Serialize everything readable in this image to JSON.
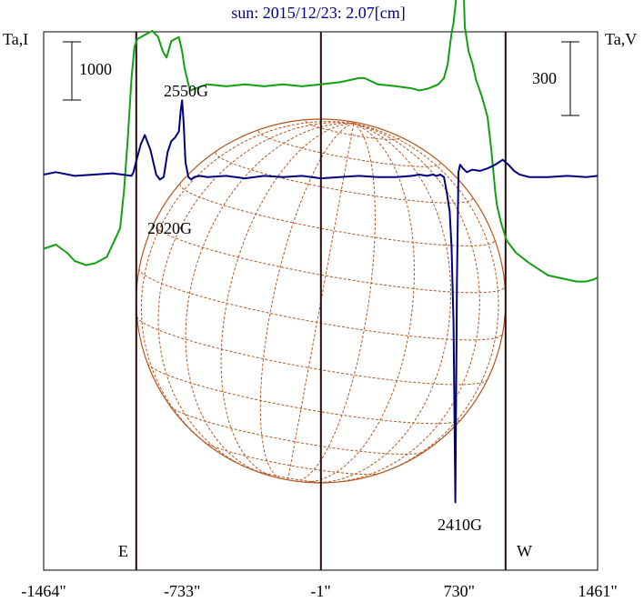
{
  "chart_data": {
    "type": "line",
    "title": "sun: 2015/12/23: 2.07[cm]",
    "left_axis_label": "Ta,I",
    "right_axis_label": "Ta,V",
    "left_scale_bar": "1000",
    "right_scale_bar": "300",
    "x_ticks": [
      "-1464\"",
      "-733\"",
      "-1\"",
      "730\"",
      "1461\""
    ],
    "x_tick_values": [
      -1464,
      -733,
      -1,
      730,
      1461
    ],
    "xlim": [
      -1464,
      1461
    ],
    "limb_labels": {
      "east": "E",
      "west": "W"
    },
    "solar_radius_arcsec": 975,
    "annotations": [
      {
        "text": "2550G",
        "x": -733,
        "series": "Ta,V"
      },
      {
        "text": "2020G",
        "x": -733,
        "series": "Ta,I"
      },
      {
        "text": "2410G",
        "x": 730,
        "series": "Ta,V"
      }
    ],
    "colors": {
      "intensity": "#129f12",
      "polarization": "#000080",
      "grid": "#b5561f",
      "title": "#00008b"
    },
    "series": [
      {
        "key": "intensity",
        "x": [
          -1464,
          -1400,
          -1340,
          -1300,
          -1240,
          -1190,
          -1130,
          -1060,
          -1040,
          -1020,
          -1000,
          -985,
          -970,
          -950,
          -930,
          -890,
          -860,
          -835,
          -815,
          -790,
          -770,
          -750,
          -733,
          -720,
          -700,
          -690,
          -660,
          -600,
          -500,
          -400,
          -300,
          -200,
          -100,
          0,
          100,
          200,
          230,
          300,
          400,
          480,
          520,
          570,
          620,
          650,
          670,
          680,
          690,
          700,
          710,
          720,
          740,
          760,
          780,
          800,
          820,
          850,
          880,
          900,
          920,
          930,
          950,
          980,
          1030,
          1100,
          1150,
          1200,
          1250,
          1300,
          1350,
          1400,
          1440,
          1461
        ],
        "y": [
          0.02,
          0.04,
          0.0,
          -0.04,
          -0.06,
          -0.05,
          -0.02,
          0.12,
          0.3,
          0.55,
          0.85,
          1.0,
          1.04,
          1.05,
          1.06,
          1.08,
          1.05,
          0.98,
          0.95,
          1.03,
          1.04,
          1.05,
          0.98,
          0.9,
          0.82,
          0.79,
          0.8,
          0.82,
          0.81,
          0.82,
          0.81,
          0.82,
          0.81,
          0.82,
          0.83,
          0.85,
          0.85,
          0.82,
          0.81,
          0.8,
          0.79,
          0.8,
          0.82,
          0.85,
          0.92,
          1.0,
          1.07,
          1.12,
          1.2,
          1.3,
          1.68,
          1.1,
          0.98,
          0.92,
          0.84,
          0.76,
          0.66,
          0.5,
          0.3,
          0.23,
          0.15,
          0.06,
          0.0,
          -0.05,
          -0.08,
          -0.11,
          -0.12,
          -0.13,
          -0.14,
          -0.14,
          -0.13,
          -0.12
        ]
      },
      {
        "key": "polarization",
        "x": [
          -1464,
          -1400,
          -1300,
          -1200,
          -1100,
          -1000,
          -990,
          -970,
          -950,
          -930,
          -900,
          -870,
          -850,
          -830,
          -810,
          -790,
          -770,
          -750,
          -740,
          -733,
          -725,
          -715,
          -700,
          -685,
          -670,
          -640,
          -600,
          -500,
          -400,
          -300,
          -200,
          -100,
          0,
          100,
          200,
          300,
          400,
          480,
          520,
          560,
          590,
          610,
          630,
          650,
          665,
          680,
          690,
          700,
          710,
          718,
          726,
          735,
          750,
          770,
          800,
          840,
          880,
          920,
          960,
          990,
          1020,
          1050,
          1100,
          1200,
          1300,
          1400,
          1461
        ],
        "y": [
          0.0,
          0.02,
          -0.01,
          0.0,
          0.01,
          -0.01,
          0.02,
          0.14,
          0.25,
          0.32,
          0.2,
          0.0,
          -0.04,
          -0.02,
          0.18,
          0.27,
          0.3,
          0.35,
          0.52,
          0.6,
          0.42,
          0.1,
          -0.02,
          -0.04,
          -0.02,
          -0.01,
          -0.02,
          -0.01,
          -0.03,
          -0.01,
          -0.02,
          -0.01,
          -0.03,
          -0.02,
          -0.01,
          -0.02,
          -0.02,
          -0.01,
          0.0,
          -0.01,
          0.0,
          -0.01,
          0.0,
          -0.02,
          -0.15,
          -0.3,
          -0.6,
          -1.2,
          -2.65,
          -0.9,
          0.02,
          0.08,
          0.05,
          0.02,
          0.04,
          0.03,
          0.05,
          0.08,
          0.12,
          0.08,
          0.03,
          0.0,
          -0.02,
          -0.02,
          -0.01,
          -0.02,
          -0.01
        ]
      }
    ]
  }
}
